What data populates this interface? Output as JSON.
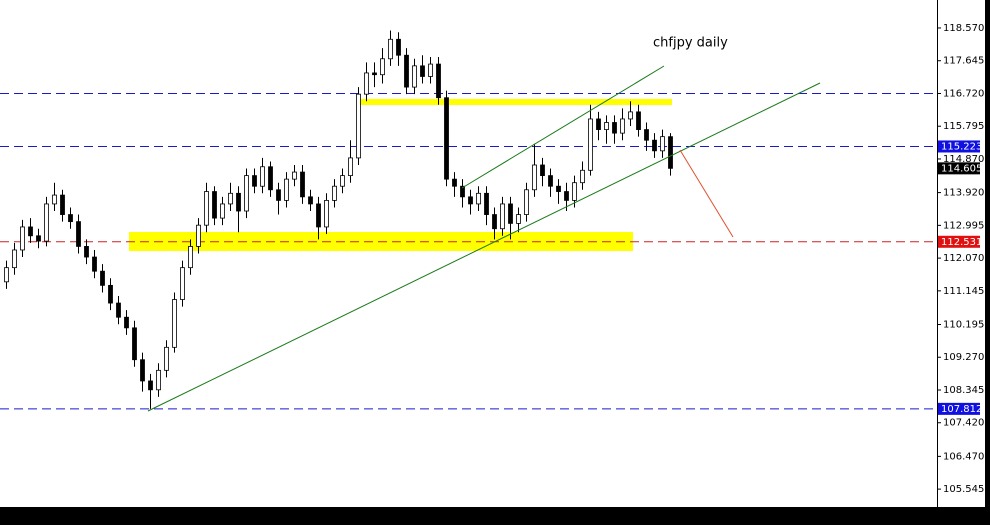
{
  "chart_data": {
    "type": "candlestick",
    "title": "chfjpy daily",
    "ylim": [
      105.04,
      119.36
    ],
    "yticks": [
      {
        "value": 118.57,
        "label": "118.570"
      },
      {
        "value": 117.645,
        "label": "117.645"
      },
      {
        "value": 116.72,
        "label": "116.720"
      },
      {
        "value": 115.795,
        "label": "115.795"
      },
      {
        "value": 114.87,
        "label": "114.870"
      },
      {
        "value": 113.92,
        "label": "113.920"
      },
      {
        "value": 112.995,
        "label": "112.995"
      },
      {
        "value": 112.07,
        "label": "112.070"
      },
      {
        "value": 111.145,
        "label": "111.145"
      },
      {
        "value": 110.195,
        "label": "110.195"
      },
      {
        "value": 109.27,
        "label": "109.270"
      },
      {
        "value": 108.345,
        "label": "108.345"
      },
      {
        "value": 107.42,
        "label": "107.420"
      },
      {
        "value": 106.47,
        "label": "106.470"
      },
      {
        "value": 105.545,
        "label": "105.545"
      }
    ],
    "levels": [
      {
        "value": 116.72,
        "color": "#1a1acc"
      },
      {
        "value": 115.223,
        "color": "#1a1acc"
      },
      {
        "value": 112.531,
        "color": "#cc2222"
      },
      {
        "value": 107.812,
        "color": "#1a1acc"
      }
    ],
    "price_tags": [
      {
        "value": 115.223,
        "color": "#1010e0"
      },
      {
        "value": 114.605,
        "color": "#000000"
      },
      {
        "value": 112.531,
        "color": "#e01010"
      },
      {
        "value": 107.812,
        "color": "#1010e0"
      }
    ],
    "open": [
      111.4,
      111.8,
      112.3,
      112.95,
      112.7,
      112.55,
      113.6,
      113.85,
      113.3,
      113.1,
      112.4,
      112.1,
      111.7,
      111.3,
      110.8,
      110.4,
      110.1,
      109.2,
      108.6,
      108.35,
      108.9,
      109.55,
      110.9,
      111.8,
      112.4,
      113.0,
      113.95,
      113.2,
      113.6,
      113.9,
      113.4,
      114.4,
      114.1,
      114.65,
      114.0,
      113.7,
      114.3,
      114.5,
      113.8,
      113.6,
      112.95,
      113.7,
      114.1,
      114.4,
      114.9,
      116.7,
      117.3,
      117.25,
      117.7,
      118.25,
      117.8,
      116.9,
      117.5,
      117.2,
      117.55,
      116.6,
      114.3,
      114.1,
      113.8,
      113.6,
      113.9,
      113.3,
      112.9,
      113.6,
      113.05,
      113.3,
      114.0,
      114.7,
      114.4,
      114.1,
      113.95,
      113.7,
      114.2,
      114.55,
      116.0,
      115.7,
      115.9,
      115.6,
      116.0,
      116.2,
      115.7,
      115.4,
      115.1,
      115.5
    ],
    "high": [
      112.0,
      112.5,
      113.15,
      113.2,
      112.9,
      113.8,
      114.2,
      114.0,
      113.5,
      113.3,
      112.6,
      112.3,
      111.9,
      111.5,
      111.0,
      110.6,
      110.3,
      109.4,
      108.8,
      109.1,
      109.75,
      111.1,
      112.0,
      112.6,
      113.2,
      114.2,
      114.1,
      113.8,
      114.2,
      114.1,
      114.6,
      114.6,
      114.9,
      114.8,
      114.2,
      114.5,
      114.7,
      114.7,
      114.0,
      113.8,
      113.9,
      114.3,
      114.6,
      115.4,
      116.9,
      117.6,
      117.6,
      118.0,
      118.5,
      118.45,
      118.0,
      117.7,
      117.8,
      117.75,
      117.75,
      116.8,
      114.5,
      114.3,
      114.0,
      114.1,
      114.1,
      113.5,
      113.8,
      113.8,
      113.5,
      114.2,
      115.3,
      114.9,
      114.6,
      114.3,
      114.2,
      114.4,
      114.8,
      116.4,
      116.2,
      116.1,
      116.1,
      116.3,
      116.5,
      116.4,
      115.9,
      115.6,
      115.7,
      115.6
    ],
    "low": [
      111.2,
      111.6,
      112.1,
      112.5,
      112.35,
      112.4,
      113.4,
      113.1,
      112.9,
      112.2,
      111.9,
      111.5,
      111.1,
      110.6,
      110.2,
      109.9,
      109.0,
      108.3,
      107.81,
      108.15,
      108.7,
      109.4,
      110.7,
      111.6,
      112.2,
      112.8,
      113.0,
      113.0,
      113.4,
      112.8,
      113.2,
      113.9,
      113.9,
      113.8,
      113.3,
      113.5,
      114.1,
      113.6,
      113.4,
      112.6,
      112.75,
      113.5,
      113.9,
      114.2,
      114.7,
      116.5,
      116.9,
      117.0,
      117.5,
      117.5,
      116.7,
      116.7,
      117.0,
      117.0,
      116.4,
      114.1,
      113.8,
      113.5,
      113.3,
      113.4,
      113.0,
      112.6,
      112.7,
      112.6,
      112.8,
      113.1,
      113.8,
      114.1,
      113.8,
      113.6,
      113.4,
      113.5,
      114.0,
      114.4,
      115.4,
      115.3,
      115.3,
      115.4,
      115.8,
      115.5,
      115.1,
      114.9,
      114.9,
      114.4
    ],
    "close": [
      111.8,
      112.3,
      112.95,
      112.7,
      112.55,
      113.6,
      113.85,
      113.3,
      113.1,
      112.4,
      112.1,
      111.7,
      111.3,
      110.8,
      110.4,
      110.1,
      109.2,
      108.6,
      108.35,
      108.9,
      109.55,
      110.9,
      111.8,
      112.4,
      113.0,
      113.95,
      113.2,
      113.6,
      113.9,
      113.4,
      114.4,
      114.1,
      114.65,
      114.0,
      113.7,
      114.3,
      114.5,
      113.8,
      113.6,
      112.95,
      113.7,
      114.1,
      114.4,
      114.9,
      116.7,
      117.3,
      117.25,
      117.7,
      118.25,
      117.8,
      116.9,
      117.5,
      117.2,
      117.55,
      116.6,
      114.3,
      114.1,
      113.8,
      113.6,
      113.9,
      113.3,
      112.9,
      113.6,
      113.05,
      113.3,
      114.0,
      114.7,
      114.4,
      114.1,
      113.95,
      113.7,
      114.2,
      114.55,
      116.0,
      115.7,
      115.9,
      115.6,
      116.0,
      116.2,
      115.7,
      115.4,
      115.1,
      115.5,
      114.605
    ]
  }
}
